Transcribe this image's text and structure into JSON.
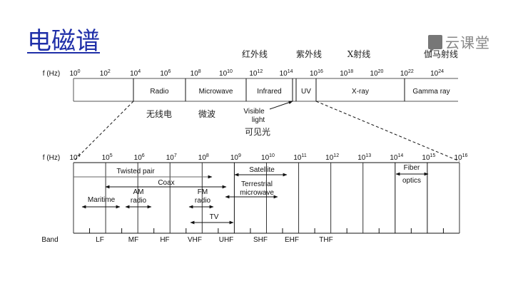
{
  "title": "电磁谱",
  "logo": {
    "text": "云课堂",
    "icon": "cloud-classroom-logo-icon"
  },
  "upper": {
    "axis_label": "f (Hz)",
    "tick_exponents": [
      "0",
      "2",
      "4",
      "6",
      "8",
      "10",
      "12",
      "14",
      "16",
      "18",
      "20",
      "22",
      "24"
    ],
    "regions": [
      "Radio",
      "Microwave",
      "Infrared",
      "UV",
      "X-ray",
      "Gamma ray"
    ],
    "visible_label_1": "Visible",
    "visible_label_2": "light",
    "cn_top": [
      "红外线",
      "紫外线",
      "X射线",
      "伽马射线"
    ],
    "cn_bottom": [
      "无线电",
      "微波",
      "可见光"
    ]
  },
  "lower": {
    "axis_label": "f (Hz)",
    "tick_exponents": [
      "4",
      "5",
      "6",
      "7",
      "8",
      "9",
      "10",
      "11",
      "12",
      "13",
      "14",
      "15",
      "16"
    ],
    "band_label": "Band",
    "bands": [
      "LF",
      "MF",
      "HF",
      "VHF",
      "UHF",
      "SHF",
      "EHF",
      "THF"
    ],
    "media": [
      {
        "lines": [
          "Twisted pair"
        ]
      },
      {
        "lines": [
          "Coax"
        ]
      },
      {
        "lines": [
          "Maritime"
        ]
      },
      {
        "lines": [
          "AM",
          "radio"
        ]
      },
      {
        "lines": [
          "FM",
          "radio"
        ]
      },
      {
        "lines": [
          "TV"
        ]
      },
      {
        "lines": [
          "Satellite"
        ]
      },
      {
        "lines": [
          "Terrestrial",
          "microwave"
        ]
      },
      {
        "lines": [
          "Fiber",
          "optics"
        ]
      }
    ]
  }
}
